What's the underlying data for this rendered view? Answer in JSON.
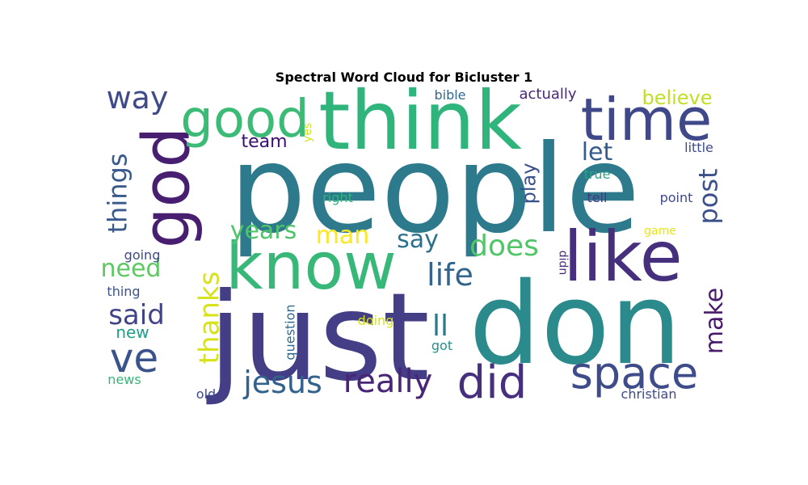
{
  "chart_data": {
    "type": "wordcloud",
    "title": "Spectral Word Cloud for Bicluster 1",
    "words": [
      {
        "text": "people",
        "color": "#2c7a8c",
        "orientation": "horizontal"
      },
      {
        "text": "just",
        "color": "#433e85",
        "orientation": "horizontal"
      },
      {
        "text": "don",
        "color": "#2a8a8c",
        "orientation": "horizontal"
      },
      {
        "text": "think",
        "color": "#2fb47c",
        "orientation": "horizontal"
      },
      {
        "text": "know",
        "color": "#37b878",
        "orientation": "horizontal"
      },
      {
        "text": "like",
        "color": "#462f7c",
        "orientation": "horizontal"
      },
      {
        "text": "time",
        "color": "#3f4889",
        "orientation": "horizontal"
      },
      {
        "text": "god",
        "color": "#481f70",
        "orientation": "vertical"
      },
      {
        "text": "good",
        "color": "#3bbb75",
        "orientation": "horizontal"
      },
      {
        "text": "space",
        "color": "#3e4c8a",
        "orientation": "horizontal"
      },
      {
        "text": "did",
        "color": "#46307e",
        "orientation": "horizontal"
      },
      {
        "text": "ve",
        "color": "#3a538b",
        "orientation": "horizontal"
      },
      {
        "text": "really",
        "color": "#482576",
        "orientation": "horizontal"
      },
      {
        "text": "jesus",
        "color": "#33638d",
        "orientation": "horizontal"
      },
      {
        "text": "thanks",
        "color": "#d8e219",
        "orientation": "vertical"
      },
      {
        "text": "things",
        "color": "#38598c",
        "orientation": "vertical"
      },
      {
        "text": "life",
        "color": "#32658e",
        "orientation": "horizontal"
      },
      {
        "text": "does",
        "color": "#52c569",
        "orientation": "horizontal"
      },
      {
        "text": "say",
        "color": "#2d708e",
        "orientation": "horizontal"
      },
      {
        "text": "make",
        "color": "#481a6c",
        "orientation": "vertical"
      },
      {
        "text": "post",
        "color": "#3b518b",
        "orientation": "vertical"
      },
      {
        "text": "way",
        "color": "#3e4a89",
        "orientation": "horizontal"
      },
      {
        "text": "need",
        "color": "#5ec962",
        "orientation": "horizontal"
      },
      {
        "text": "said",
        "color": "#414487",
        "orientation": "horizontal"
      },
      {
        "text": "years",
        "color": "#50c46a",
        "orientation": "horizontal"
      },
      {
        "text": "man",
        "color": "#fde725",
        "orientation": "horizontal"
      },
      {
        "text": "ll",
        "color": "#2a788e",
        "orientation": "horizontal"
      },
      {
        "text": "let",
        "color": "#365c8d",
        "orientation": "horizontal"
      },
      {
        "text": "believe",
        "color": "#c2df23",
        "orientation": "horizontal"
      },
      {
        "text": "team",
        "color": "#3b0f70",
        "orientation": "horizontal"
      },
      {
        "text": "play",
        "color": "#3b518b",
        "orientation": "vertical"
      },
      {
        "text": "new",
        "color": "#1f9e89",
        "orientation": "horizontal"
      },
      {
        "text": "going",
        "color": "#3e4989",
        "orientation": "horizontal"
      },
      {
        "text": "thing",
        "color": "#3b528b",
        "orientation": "horizontal"
      },
      {
        "text": "news",
        "color": "#35b779",
        "orientation": "horizontal"
      },
      {
        "text": "old",
        "color": "#3e4989",
        "orientation": "horizontal"
      },
      {
        "text": "question",
        "color": "#31688e",
        "orientation": "vertical"
      },
      {
        "text": "doing",
        "color": "#d5e21a",
        "orientation": "horizontal"
      },
      {
        "text": "got",
        "color": "#21918c",
        "orientation": "horizontal"
      },
      {
        "text": "right",
        "color": "#2fb47c",
        "orientation": "horizontal"
      },
      {
        "text": "yes",
        "color": "#d8e219",
        "orientation": "vertical"
      },
      {
        "text": "bible",
        "color": "#31688e",
        "orientation": "horizontal"
      },
      {
        "text": "actually",
        "color": "#482878",
        "orientation": "horizontal"
      },
      {
        "text": "true",
        "color": "#26a784",
        "orientation": "horizontal"
      },
      {
        "text": "tell",
        "color": "#453781",
        "orientation": "horizontal"
      },
      {
        "text": "point",
        "color": "#3e4989",
        "orientation": "horizontal"
      },
      {
        "text": "little",
        "color": "#3e4989",
        "orientation": "horizontal"
      },
      {
        "text": "game",
        "color": "#e5e419",
        "orientation": "horizontal"
      },
      {
        "text": "didn",
        "color": "#482878",
        "orientation": "vertical"
      },
      {
        "text": "christian",
        "color": "#3e4989",
        "orientation": "horizontal"
      }
    ]
  }
}
